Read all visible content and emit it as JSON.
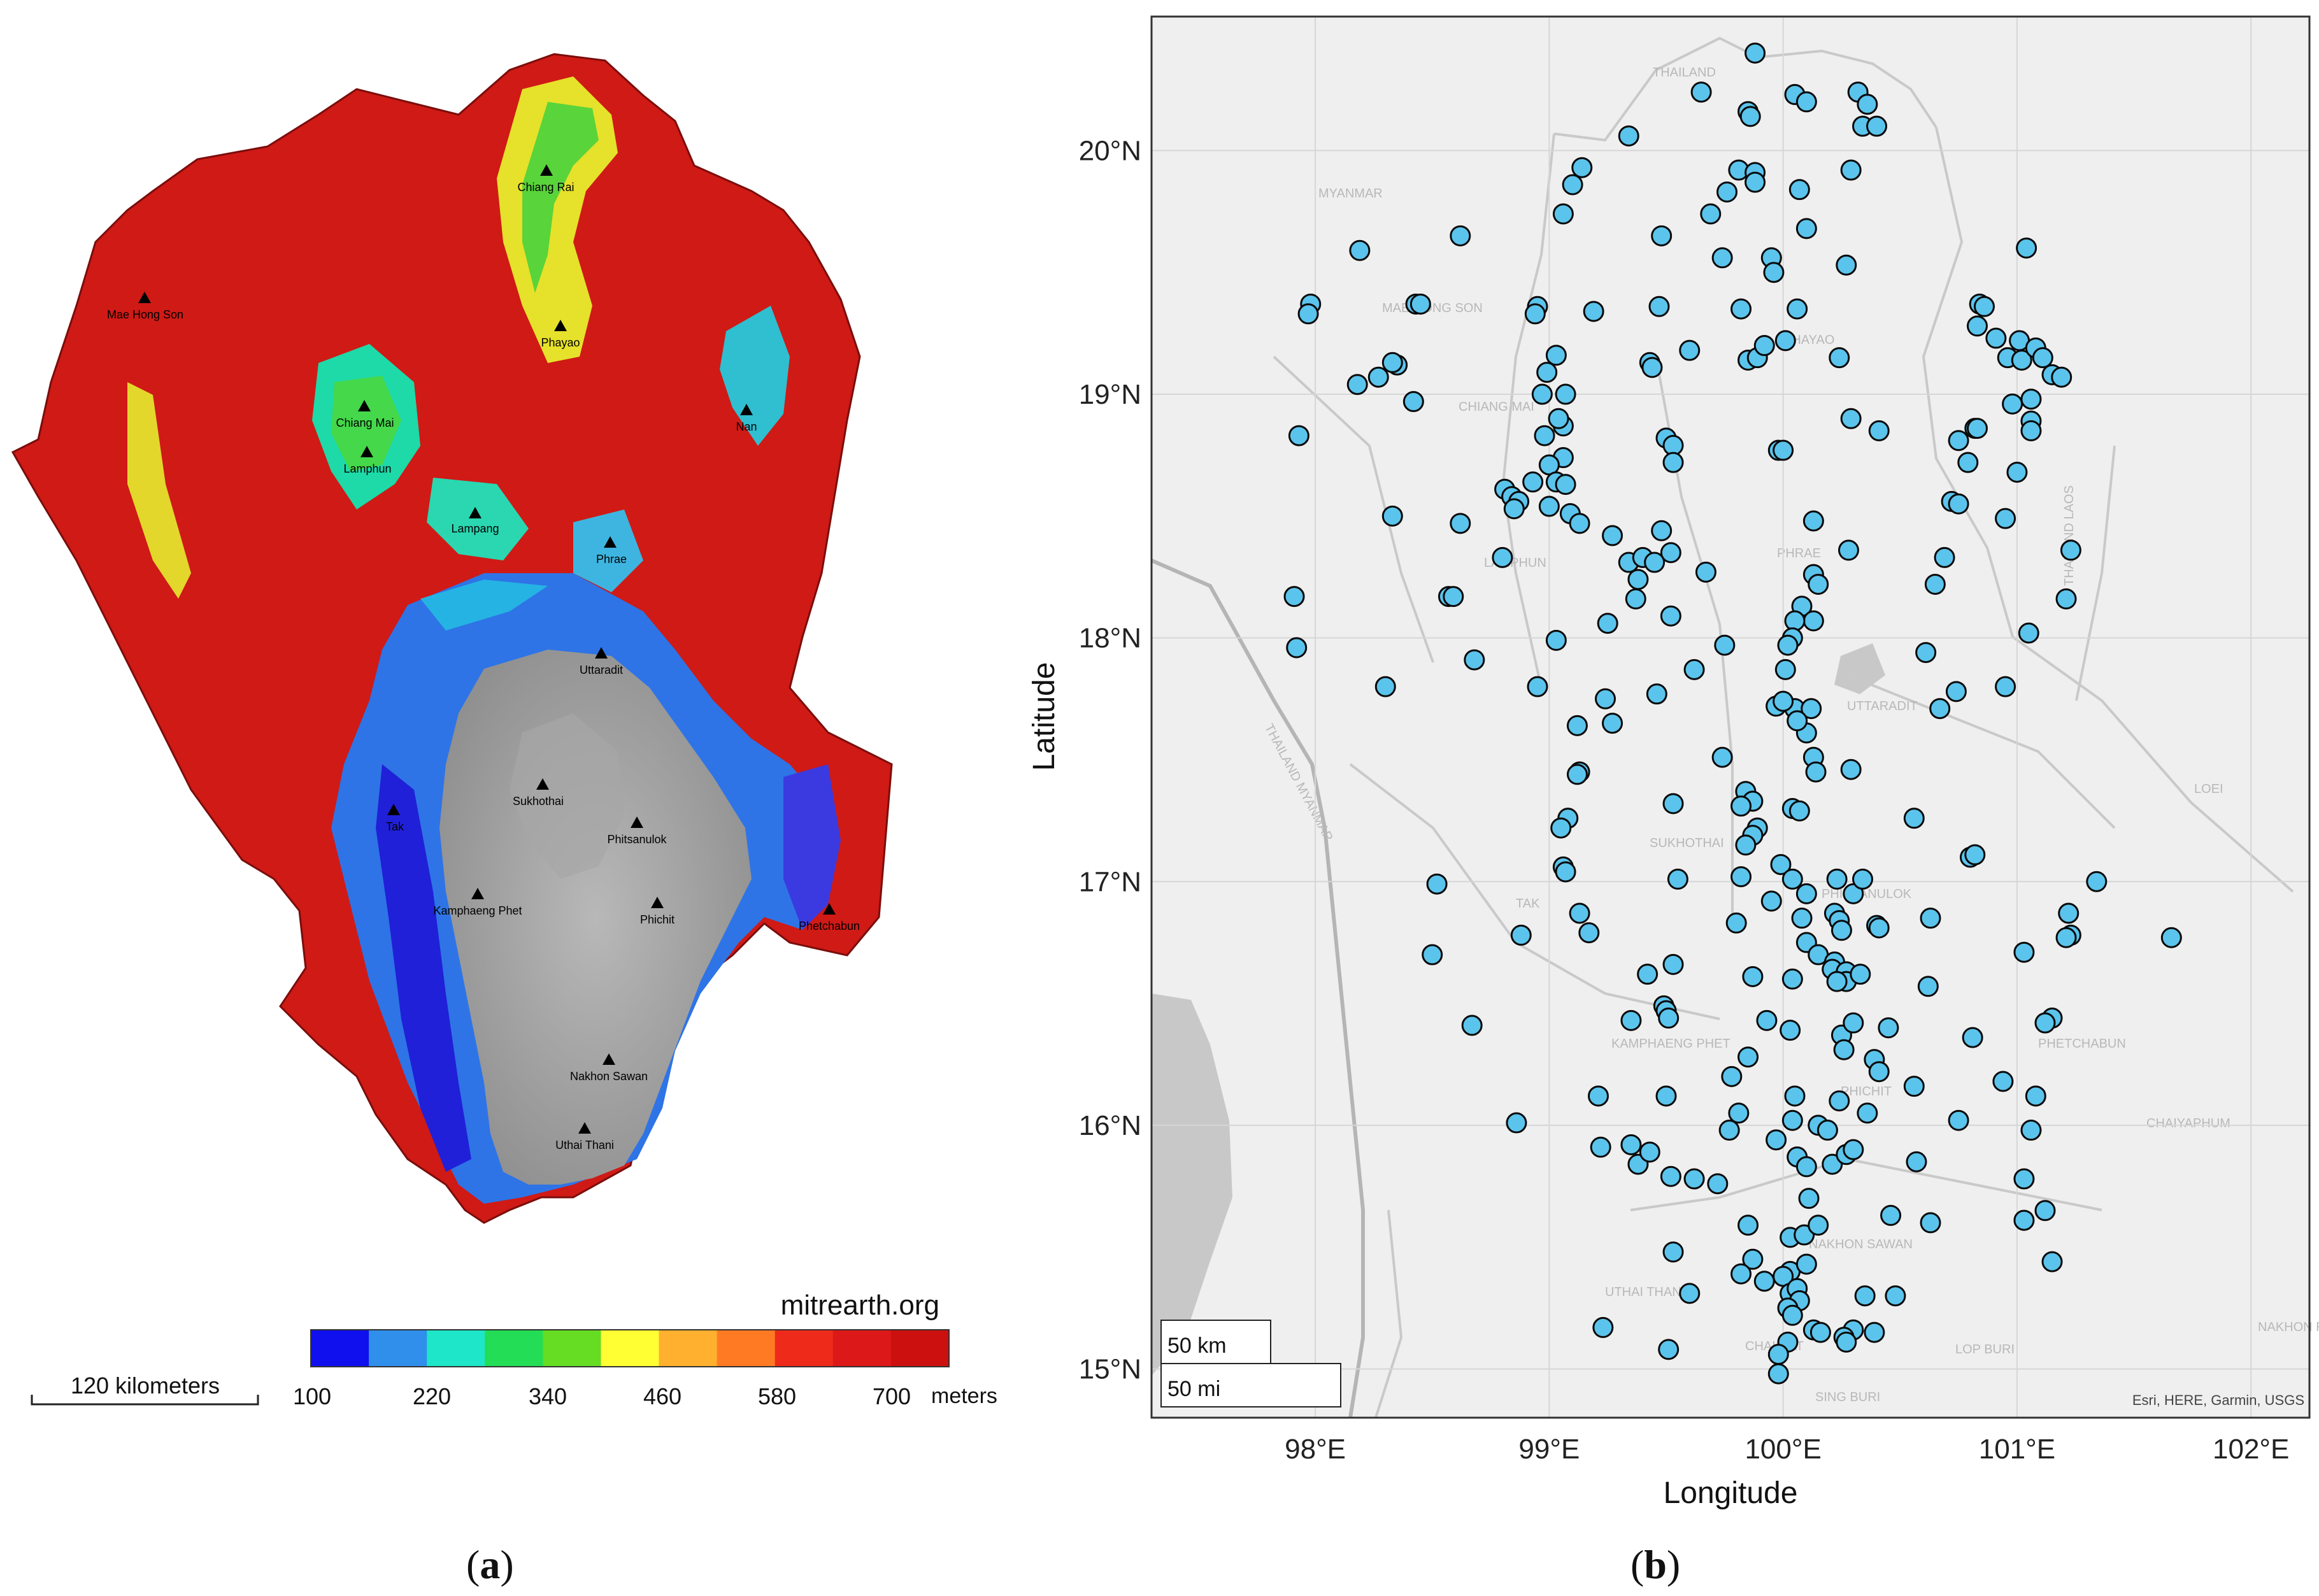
{
  "panel_a": {
    "caption_open": "(",
    "caption_letter": "a",
    "caption_close": ")",
    "source_label": "mitrearth.org",
    "scale_bar_label": "120 kilometers",
    "legend": {
      "unit": "meters",
      "tick_labels": [
        "100",
        "220",
        "340",
        "460",
        "580",
        "700"
      ],
      "colors": [
        "#1010ee",
        "#2f8fea",
        "#1ee6c8",
        "#22dd55",
        "#66dd22",
        "#ffff33",
        "#ffb02e",
        "#ff7a22",
        "#ee2a1a",
        "#dd1818",
        "#cc1010"
      ]
    },
    "cities": [
      {
        "name": "Chiang Rai"
      },
      {
        "name": "Mae Hong Son"
      },
      {
        "name": "Phayao"
      },
      {
        "name": "Chiang Mai"
      },
      {
        "name": "Nan"
      },
      {
        "name": "Lamphun"
      },
      {
        "name": "Lampang"
      },
      {
        "name": "Phrae"
      },
      {
        "name": "Uttaradit"
      },
      {
        "name": "Sukhothai"
      },
      {
        "name": "Tak"
      },
      {
        "name": "Phitsanulok"
      },
      {
        "name": "Kamphaeng Phet"
      },
      {
        "name": "Phichit"
      },
      {
        "name": "Phetchabun"
      },
      {
        "name": "Nakhon Sawan"
      },
      {
        "name": "Uthai Thani"
      }
    ]
  },
  "panel_b": {
    "caption_open": "(",
    "caption_letter": "b",
    "caption_close": ")",
    "attribution": "Esri, HERE, Garmin, USGS",
    "scale_km": "50 km",
    "scale_mi": "50 mi",
    "map_labels": [
      "THAILAND",
      "MYANMAR",
      "MAE HONG SON",
      "CHIANG MAI",
      "PHAYAO",
      "LAMPHUN",
      "PHRAE",
      "UTTARADIT",
      "THAILAND MYANMAR",
      "SUKHOTHAI",
      "TAK",
      "PHITSANULOK",
      "KAMPHAENG PHET",
      "PHICHIT",
      "PHETCHABUN",
      "THAILAND LAOS",
      "LOEI",
      "CHAIYAPHUM",
      "UTHAI THANI",
      "NAKHON SAWAN",
      "CHAI NAT",
      "LOP BURI",
      "SING BURI",
      "NAKHON RATCHASIMA"
    ]
  },
  "chart_data": {
    "type": "scatter",
    "xlabel": "Longitude",
    "ylabel": "Latitude",
    "xlim": [
      97.3,
      102.25
    ],
    "ylim": [
      14.8,
      20.55
    ],
    "x_ticks": [
      98,
      99,
      100,
      101,
      102
    ],
    "x_tick_labels": [
      "98°E",
      "99°E",
      "100°E",
      "101°E",
      "102°E"
    ],
    "y_ticks": [
      15,
      16,
      17,
      18,
      19,
      20
    ],
    "y_tick_labels": [
      "15°N",
      "16°N",
      "17°N",
      "18°N",
      "19°N",
      "20°N"
    ],
    "grid": true,
    "marker_color": "#5bc4ec",
    "points": [
      [
        99.88,
        20.4
      ],
      [
        99.65,
        20.24
      ],
      [
        100.05,
        20.23
      ],
      [
        100.1,
        20.2
      ],
      [
        100.32,
        20.24
      ],
      [
        100.36,
        20.19
      ],
      [
        99.85,
        20.16
      ],
      [
        99.86,
        20.14
      ],
      [
        100.34,
        20.1
      ],
      [
        100.4,
        20.1
      ],
      [
        99.34,
        20.06
      ],
      [
        99.14,
        19.93
      ],
      [
        99.1,
        19.86
      ],
      [
        99.81,
        19.92
      ],
      [
        99.88,
        19.91
      ],
      [
        100.29,
        19.92
      ],
      [
        99.76,
        19.83
      ],
      [
        99.88,
        19.87
      ],
      [
        100.07,
        19.84
      ],
      [
        99.06,
        19.74
      ],
      [
        99.69,
        19.74
      ],
      [
        100.1,
        19.68
      ],
      [
        98.19,
        19.59
      ],
      [
        98.62,
        19.65
      ],
      [
        99.48,
        19.65
      ],
      [
        99.74,
        19.56
      ],
      [
        99.95,
        19.56
      ],
      [
        99.96,
        19.5
      ],
      [
        100.27,
        19.53
      ],
      [
        101.04,
        19.6
      ],
      [
        97.98,
        19.37
      ],
      [
        97.97,
        19.33
      ],
      [
        98.43,
        19.37
      ],
      [
        98.45,
        19.37
      ],
      [
        99.19,
        19.34
      ],
      [
        98.95,
        19.36
      ],
      [
        98.94,
        19.33
      ],
      [
        99.47,
        19.36
      ],
      [
        99.82,
        19.35
      ],
      [
        100.06,
        19.35
      ],
      [
        100.84,
        19.37
      ],
      [
        100.86,
        19.36
      ],
      [
        101.01,
        19.22
      ],
      [
        98.35,
        19.12
      ],
      [
        98.33,
        19.13
      ],
      [
        98.99,
        19.09
      ],
      [
        99.03,
        19.16
      ],
      [
        99.43,
        19.13
      ],
      [
        99.44,
        19.11
      ],
      [
        99.6,
        19.18
      ],
      [
        99.85,
        19.14
      ],
      [
        99.89,
        19.15
      ],
      [
        99.92,
        19.2
      ],
      [
        100.01,
        19.22
      ],
      [
        100.24,
        19.15
      ],
      [
        100.83,
        19.28
      ],
      [
        100.91,
        19.23
      ],
      [
        100.96,
        19.15
      ],
      [
        101.02,
        19.14
      ],
      [
        101.08,
        19.19
      ],
      [
        101.11,
        19.15
      ],
      [
        101.15,
        19.08
      ],
      [
        101.19,
        19.07
      ],
      [
        98.18,
        19.04
      ],
      [
        98.27,
        19.07
      ],
      [
        98.42,
        18.97
      ],
      [
        98.97,
        19.0
      ],
      [
        99.07,
        19.0
      ],
      [
        98.98,
        18.83
      ],
      [
        99.06,
        18.87
      ],
      [
        99.04,
        18.9
      ],
      [
        99.5,
        18.82
      ],
      [
        99.53,
        18.79
      ],
      [
        100.29,
        18.9
      ],
      [
        100.41,
        18.85
      ],
      [
        100.75,
        18.81
      ],
      [
        100.82,
        18.86
      ],
      [
        101.06,
        18.98
      ],
      [
        100.98,
        18.96
      ],
      [
        101.06,
        18.89
      ],
      [
        101.06,
        18.85
      ],
      [
        97.93,
        18.83
      ],
      [
        99.53,
        18.72
      ],
      [
        99.06,
        18.74
      ],
      [
        99.0,
        18.71
      ],
      [
        98.93,
        18.64
      ],
      [
        99.03,
        18.64
      ],
      [
        99.07,
        18.63
      ],
      [
        98.81,
        18.61
      ],
      [
        98.84,
        18.58
      ],
      [
        98.87,
        18.56
      ],
      [
        98.85,
        18.53
      ],
      [
        99.0,
        18.54
      ],
      [
        99.09,
        18.51
      ],
      [
        99.13,
        18.47
      ],
      [
        99.98,
        18.77
      ],
      [
        100.0,
        18.77
      ],
      [
        100.72,
        18.56
      ],
      [
        100.75,
        18.55
      ],
      [
        100.79,
        18.72
      ],
      [
        100.83,
        18.86
      ],
      [
        101.0,
        18.68
      ],
      [
        100.95,
        18.49
      ],
      [
        98.33,
        18.5
      ],
      [
        98.62,
        18.47
      ],
      [
        99.27,
        18.42
      ],
      [
        99.48,
        18.44
      ],
      [
        99.67,
        18.27
      ],
      [
        99.52,
        18.35
      ],
      [
        100.13,
        18.48
      ],
      [
        100.28,
        18.36
      ],
      [
        98.8,
        18.33
      ],
      [
        99.34,
        18.31
      ],
      [
        99.4,
        18.33
      ],
      [
        99.45,
        18.31
      ],
      [
        99.38,
        18.24
      ],
      [
        100.13,
        18.26
      ],
      [
        100.15,
        18.22
      ],
      [
        100.69,
        18.33
      ],
      [
        101.23,
        18.36
      ],
      [
        98.57,
        18.17
      ],
      [
        98.59,
        18.17
      ],
      [
        99.37,
        18.16
      ],
      [
        99.52,
        18.09
      ],
      [
        100.08,
        18.13
      ],
      [
        100.13,
        18.07
      ],
      [
        100.05,
        18.07
      ],
      [
        100.04,
        18.0
      ],
      [
        100.65,
        18.22
      ],
      [
        101.21,
        18.16
      ],
      [
        97.91,
        18.17
      ],
      [
        97.92,
        17.96
      ],
      [
        99.03,
        17.99
      ],
      [
        99.25,
        18.06
      ],
      [
        99.75,
        17.97
      ],
      [
        100.02,
        17.97
      ],
      [
        101.05,
        18.02
      ],
      [
        100.61,
        17.94
      ],
      [
        98.3,
        17.8
      ],
      [
        98.68,
        17.91
      ],
      [
        98.95,
        17.8
      ],
      [
        99.24,
        17.75
      ],
      [
        99.27,
        17.65
      ],
      [
        99.12,
        17.64
      ],
      [
        99.46,
        17.77
      ],
      [
        99.62,
        17.87
      ],
      [
        100.01,
        17.87
      ],
      [
        99.97,
        17.72
      ],
      [
        100.05,
        17.71
      ],
      [
        100.12,
        17.71
      ],
      [
        100.1,
        17.61
      ],
      [
        100.06,
        17.66
      ],
      [
        100.0,
        17.74
      ],
      [
        100.74,
        17.78
      ],
      [
        100.67,
        17.71
      ],
      [
        100.95,
        17.8
      ],
      [
        99.74,
        17.51
      ],
      [
        100.13,
        17.51
      ],
      [
        100.14,
        17.45
      ],
      [
        100.29,
        17.46
      ],
      [
        99.13,
        17.45
      ],
      [
        99.12,
        17.44
      ],
      [
        99.08,
        17.26
      ],
      [
        99.05,
        17.22
      ],
      [
        99.53,
        17.32
      ],
      [
        99.84,
        17.37
      ],
      [
        99.87,
        17.33
      ],
      [
        99.82,
        17.31
      ],
      [
        99.89,
        17.22
      ],
      [
        99.87,
        17.19
      ],
      [
        99.84,
        17.15
      ],
      [
        100.04,
        17.3
      ],
      [
        100.07,
        17.29
      ],
      [
        100.56,
        17.26
      ],
      [
        99.06,
        17.06
      ],
      [
        99.07,
        17.04
      ],
      [
        99.55,
        17.01
      ],
      [
        99.82,
        17.02
      ],
      [
        99.99,
        17.07
      ],
      [
        100.04,
        17.01
      ],
      [
        100.1,
        16.95
      ],
      [
        100.3,
        16.95
      ],
      [
        100.23,
        17.01
      ],
      [
        100.34,
        17.01
      ],
      [
        100.8,
        17.1
      ],
      [
        100.82,
        17.11
      ],
      [
        101.34,
        17.0
      ],
      [
        98.52,
        16.99
      ],
      [
        98.88,
        16.78
      ],
      [
        99.13,
        16.87
      ],
      [
        99.17,
        16.79
      ],
      [
        99.8,
        16.83
      ],
      [
        99.95,
        16.92
      ],
      [
        100.08,
        16.85
      ],
      [
        100.1,
        16.75
      ],
      [
        100.15,
        16.7
      ],
      [
        100.22,
        16.87
      ],
      [
        100.24,
        16.84
      ],
      [
        100.25,
        16.8
      ],
      [
        100.4,
        16.82
      ],
      [
        100.41,
        16.81
      ],
      [
        100.63,
        16.85
      ],
      [
        101.03,
        16.71
      ],
      [
        101.23,
        16.78
      ],
      [
        101.21,
        16.77
      ],
      [
        101.22,
        16.87
      ],
      [
        101.66,
        16.77
      ],
      [
        98.5,
        16.7
      ],
      [
        99.42,
        16.62
      ],
      [
        99.49,
        16.49
      ],
      [
        99.5,
        16.47
      ],
      [
        99.53,
        16.66
      ],
      [
        99.87,
        16.61
      ],
      [
        100.04,
        16.6
      ],
      [
        100.22,
        16.67
      ],
      [
        100.21,
        16.64
      ],
      [
        100.27,
        16.63
      ],
      [
        100.27,
        16.59
      ],
      [
        100.23,
        16.59
      ],
      [
        100.33,
        16.62
      ],
      [
        100.62,
        16.57
      ],
      [
        98.67,
        16.41
      ],
      [
        99.35,
        16.43
      ],
      [
        99.51,
        16.44
      ],
      [
        99.93,
        16.43
      ],
      [
        100.03,
        16.39
      ],
      [
        100.25,
        16.37
      ],
      [
        100.3,
        16.42
      ],
      [
        100.45,
        16.4
      ],
      [
        100.26,
        16.31
      ],
      [
        100.81,
        16.36
      ],
      [
        101.15,
        16.44
      ],
      [
        101.12,
        16.42
      ],
      [
        99.21,
        16.12
      ],
      [
        99.5,
        16.12
      ],
      [
        99.78,
        16.2
      ],
      [
        99.85,
        16.28
      ],
      [
        100.05,
        16.12
      ],
      [
        100.24,
        16.1
      ],
      [
        100.39,
        16.27
      ],
      [
        100.41,
        16.22
      ],
      [
        100.56,
        16.16
      ],
      [
        100.94,
        16.18
      ],
      [
        101.08,
        16.12
      ],
      [
        98.86,
        16.01
      ],
      [
        99.22,
        15.91
      ],
      [
        99.35,
        15.92
      ],
      [
        99.38,
        15.84
      ],
      [
        99.43,
        15.89
      ],
      [
        99.81,
        16.05
      ],
      [
        99.77,
        15.98
      ],
      [
        99.97,
        15.94
      ],
      [
        100.04,
        16.02
      ],
      [
        100.15,
        16.0
      ],
      [
        100.19,
        15.98
      ],
      [
        100.06,
        15.87
      ],
      [
        100.1,
        15.83
      ],
      [
        100.21,
        15.84
      ],
      [
        100.27,
        15.88
      ],
      [
        100.3,
        15.9
      ],
      [
        100.36,
        16.05
      ],
      [
        100.57,
        15.85
      ],
      [
        100.75,
        16.02
      ],
      [
        101.06,
        15.98
      ],
      [
        101.03,
        15.78
      ],
      [
        99.52,
        15.79
      ],
      [
        99.62,
        15.78
      ],
      [
        99.72,
        15.76
      ],
      [
        100.11,
        15.7
      ],
      [
        100.46,
        15.63
      ],
      [
        100.63,
        15.6
      ],
      [
        101.03,
        15.61
      ],
      [
        101.12,
        15.65
      ],
      [
        99.85,
        15.59
      ],
      [
        100.03,
        15.54
      ],
      [
        100.09,
        15.55
      ],
      [
        100.15,
        15.59
      ],
      [
        99.53,
        15.48
      ],
      [
        99.87,
        15.45
      ],
      [
        100.03,
        15.4
      ],
      [
        100.1,
        15.43
      ],
      [
        101.15,
        15.44
      ],
      [
        99.82,
        15.39
      ],
      [
        99.92,
        15.36
      ],
      [
        100.0,
        15.38
      ],
      [
        100.03,
        15.31
      ],
      [
        100.06,
        15.33
      ],
      [
        100.07,
        15.28
      ],
      [
        100.02,
        15.25
      ],
      [
        100.04,
        15.22
      ],
      [
        100.35,
        15.3
      ],
      [
        100.48,
        15.3
      ],
      [
        99.6,
        15.31
      ],
      [
        100.3,
        15.16
      ],
      [
        99.23,
        15.17
      ],
      [
        99.51,
        15.08
      ],
      [
        100.02,
        15.11
      ],
      [
        100.13,
        15.16
      ],
      [
        100.16,
        15.15
      ],
      [
        100.26,
        15.13
      ],
      [
        100.27,
        15.11
      ],
      [
        100.39,
        15.15
      ],
      [
        99.98,
        15.06
      ],
      [
        99.98,
        14.98
      ]
    ]
  }
}
